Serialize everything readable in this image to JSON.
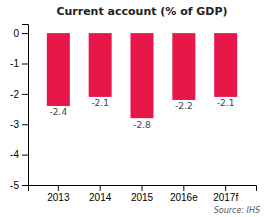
{
  "chart_data": {
    "type": "bar",
    "title": "Current account (% of GDP)",
    "categories": [
      "2013",
      "2014",
      "2015",
      "2016e",
      "2017f"
    ],
    "values": [
      -2.4,
      -2.1,
      -2.8,
      -2.2,
      -2.1
    ],
    "color": "#e8174a",
    "ylim": [
      -5,
      0.3
    ],
    "yticks": [
      0,
      -1,
      -2,
      -3,
      -4,
      -5
    ],
    "grid": false,
    "data_labels": true,
    "annotations": [
      "Source: IHS"
    ]
  }
}
